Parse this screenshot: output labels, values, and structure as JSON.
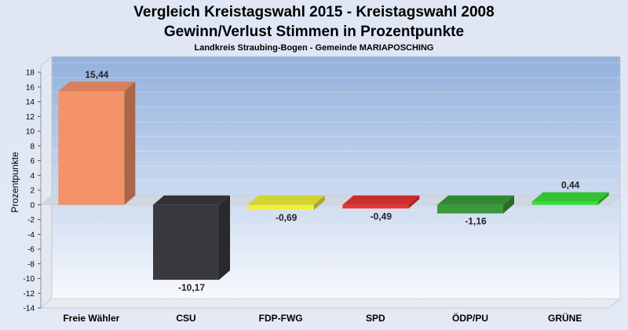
{
  "chart_data": {
    "type": "bar",
    "title": "Vergleich Kreistagswahl 2015 - Kreistagswahl 2008",
    "subtitle": "Gewinn/Verlust Stimmen in Prozentpunkte",
    "subtitle2": "Landkreis Straubing-Bogen - Gemeinde MARIAPOSCHING",
    "ylabel": "Prozentpunkte",
    "ylim": [
      -14,
      18
    ],
    "ytick_step": 2,
    "grid": true,
    "categories": [
      "Freie Wähler",
      "CSU",
      "FDP-FWG",
      "SPD",
      "ÖDP/PU",
      "GRÜNE"
    ],
    "values": [
      15.44,
      -10.17,
      -0.69,
      -0.49,
      -1.16,
      0.44
    ],
    "data_labels": [
      "15,44",
      "-10,17",
      "-0,69",
      "-0,49",
      "-1,16",
      "0,44"
    ],
    "colors": [
      "#f4926a",
      "#3a3a3e",
      "#f0f03a",
      "#e83434",
      "#3a9a3a",
      "#3cdc3c"
    ]
  }
}
